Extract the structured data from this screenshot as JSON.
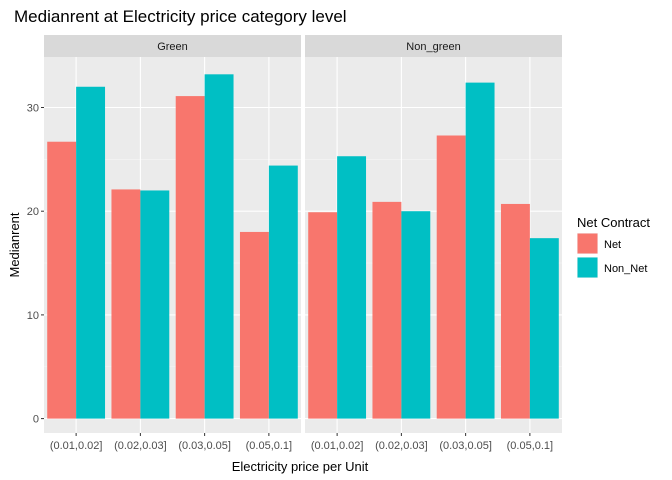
{
  "chart_data": {
    "type": "bar",
    "title": "Medianrent at Electricity price category level",
    "xlabel": "Electricity price per Unit",
    "ylabel": "Medianrent",
    "ylim": [
      0,
      35
    ],
    "yticks": [
      0,
      10,
      20,
      30
    ],
    "grid": true,
    "legend_position": "right",
    "legend": {
      "title": "Net Contract",
      "entries": [
        {
          "name": "Net",
          "color": "#F8766D"
        },
        {
          "name": "Non_Net",
          "color": "#00BFC4"
        }
      ]
    },
    "categories": [
      "(0.01,0.02]",
      "(0.02,0.03]",
      "(0.03,0.05]",
      "(0.05,0.1]"
    ],
    "panels": [
      {
        "label": "Green",
        "series": [
          {
            "name": "Net",
            "values": [
              26.7,
              22.1,
              31.1,
              18.0
            ]
          },
          {
            "name": "Non_Net",
            "values": [
              32.0,
              22.0,
              33.2,
              24.4
            ]
          }
        ]
      },
      {
        "label": "Non_green",
        "series": [
          {
            "name": "Net",
            "values": [
              19.9,
              20.9,
              27.3,
              20.7
            ]
          },
          {
            "name": "Non_Net",
            "values": [
              25.3,
              20.0,
              32.4,
              17.4
            ]
          }
        ]
      }
    ]
  }
}
